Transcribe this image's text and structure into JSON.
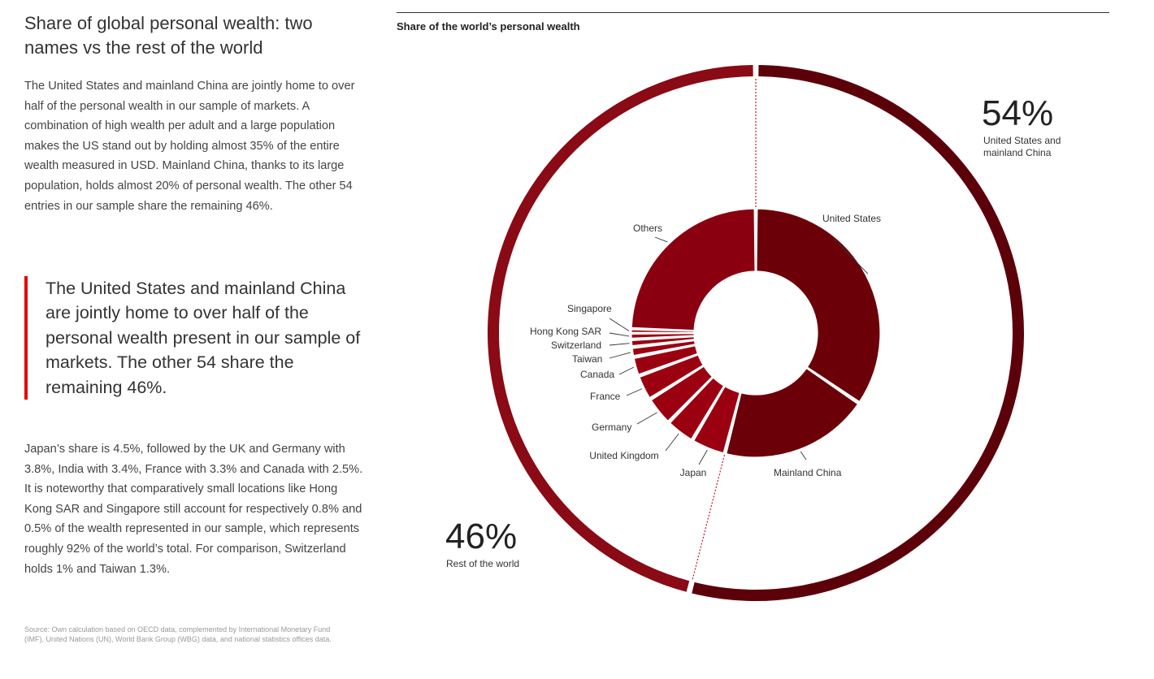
{
  "text": {
    "heading": "Share of global personal wealth: two names vs the rest of the world",
    "para1": "The United States and mainland China are jointly home to over half of the personal wealth in our sample of markets. A combination of high wealth per adult and a large population makes the US stand out by holding almost 35% of the entire wealth measured in USD. Mainland China, thanks to its large population, holds almost 20% of personal wealth. The other 54 entries in our sample share the remaining 46%.",
    "quote": "The United States and mainland China are jointly home to over half of the personal wealth present in our sample of markets. The other 54 share the remaining 46%.",
    "para2": "Japan’s share is 4.5%, followed by the UK and Germany with 3.8%, India with 3.4%, France with 3.3% and Canada with 2.5%. It is noteworthy that comparatively small locations like Hong Kong SAR and Singapore still account for respectively 0.8% and 0.5% of the wealth represented in our sample, which represents roughly 92% of the world’s total. For comparison, Switzerland holds 1% and Taiwan 1.3%.",
    "source": "Source: Own calculation based on OECD data, complemented by International Monetary Fund (IMF), United Nations (UN), World Bank Group (WBG) data, and national statistics offices data."
  },
  "chart_data": {
    "type": "pie",
    "title": "Share of the world’s personal wealth",
    "outer_ring": [
      {
        "label": "United States and mainland China",
        "display": "54%",
        "value": 54,
        "color": "#5c0009"
      },
      {
        "label": "Rest of the world",
        "display": "46%",
        "value": 46,
        "color": "#8a0a15"
      }
    ],
    "inner_ring": [
      {
        "label": "United States",
        "value": 34.5,
        "color": "#6b0008"
      },
      {
        "label": "Mainland China",
        "value": 19.5,
        "color": "#6b0008"
      },
      {
        "label": "Japan",
        "value": 4.5,
        "color": "#9b0010"
      },
      {
        "label": "United Kingdom",
        "value": 3.8,
        "color": "#9b0010"
      },
      {
        "label": "Germany",
        "value": 3.8,
        "color": "#9b0010"
      },
      {
        "label": "France",
        "value": 3.3,
        "color": "#9b0010"
      },
      {
        "label": "Canada",
        "value": 2.5,
        "color": "#9b0010"
      },
      {
        "label": "Taiwan",
        "value": 1.3,
        "color": "#9b0010"
      },
      {
        "label": "Switzerland",
        "value": 1.0,
        "color": "#9b0010"
      },
      {
        "label": "Hong Kong SAR",
        "value": 0.8,
        "color": "#9b0010"
      },
      {
        "label": "Singapore",
        "value": 0.5,
        "color": "#9b0010"
      },
      {
        "label": "Others",
        "value": 24.5,
        "color": "#8a0010"
      }
    ]
  }
}
